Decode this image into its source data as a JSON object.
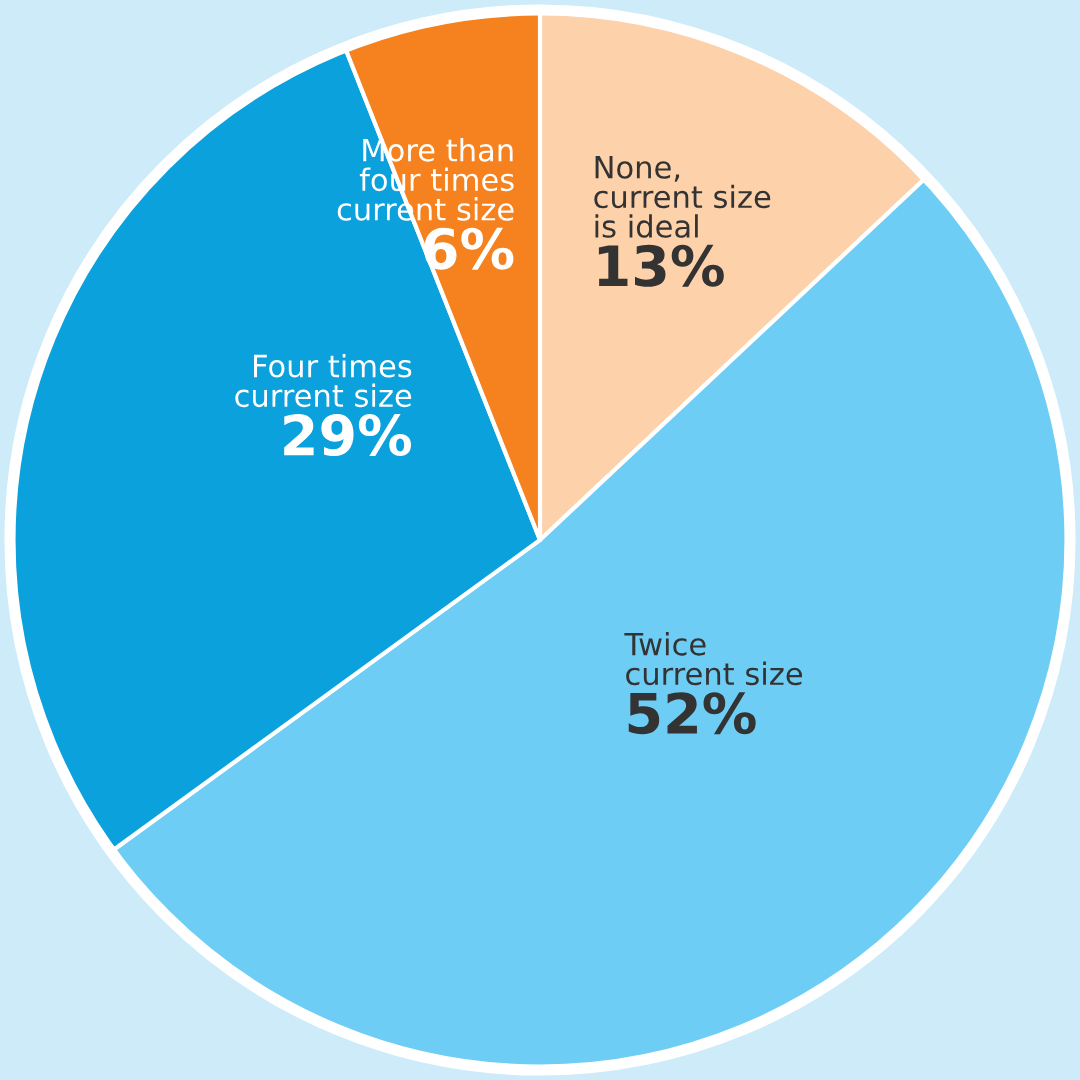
{
  "chart_data": {
    "type": "pie",
    "categories": [
      "None,\ncurrent size\nis ideal",
      "Twice\ncurrent size",
      "Four times\ncurrent size",
      "More than\nfour times\ncurrent size"
    ],
    "values": [
      13,
      52,
      29,
      6
    ],
    "value_labels": [
      "13%",
      "52%",
      "29%",
      "6%"
    ],
    "colors": [
      "#fdd1a9",
      "#6dcdf5",
      "#0ba1dc",
      "#f5821f"
    ],
    "legend": false
  }
}
